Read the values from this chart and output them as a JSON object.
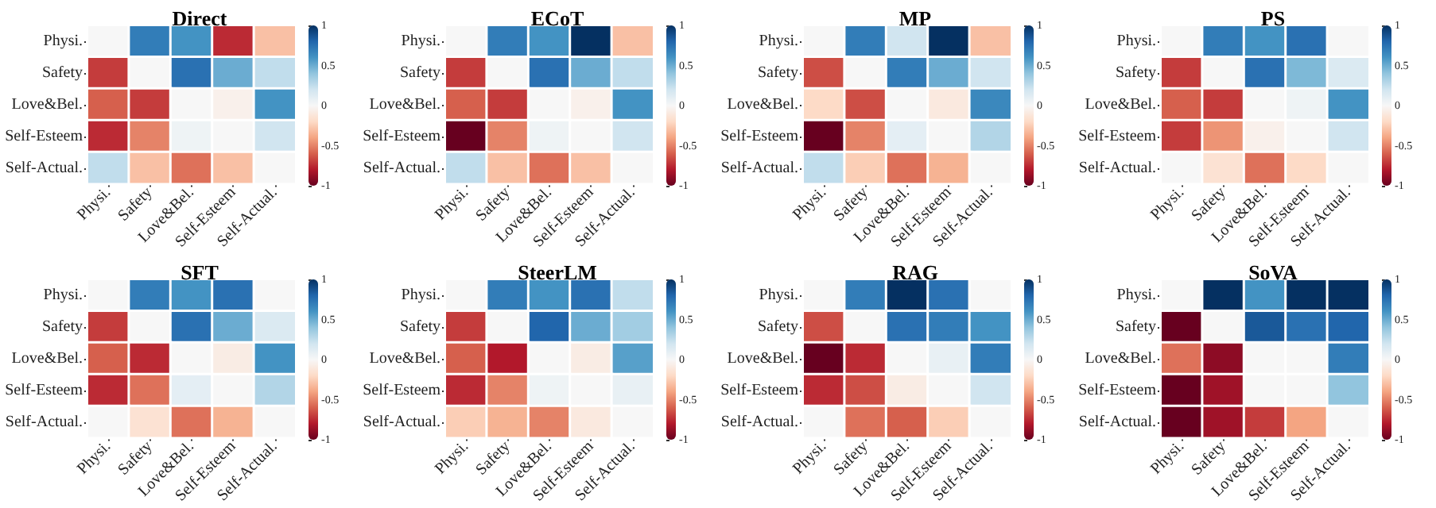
{
  "chart_data": [
    {
      "type": "heatmap",
      "title": "Direct",
      "categories": [
        "Physi.",
        "Safety",
        "Love&Bel.",
        "Self-Esteem",
        "Self-Actual."
      ],
      "y_categories": [
        "Physi.",
        "Safety",
        "Love&Bel.",
        "Self-Esteem",
        "Self-Actual."
      ],
      "clim": [
        -1,
        1
      ],
      "cticks": [
        -1,
        -0.5,
        0,
        0.5,
        1
      ],
      "cells": [
        [
          0,
          0.7,
          0.6,
          -0.75,
          -0.3
        ],
        [
          -0.7,
          0,
          0.75,
          0.5,
          0.25
        ],
        [
          -0.6,
          -0.7,
          0,
          -0.05,
          0.6
        ],
        [
          -0.75,
          -0.5,
          0.05,
          0,
          0.2
        ],
        [
          0.25,
          -0.3,
          -0.55,
          -0.3,
          0
        ]
      ]
    },
    {
      "type": "heatmap",
      "title": "ECoT",
      "categories": [
        "Physi.",
        "Safety",
        "Love&Bel.",
        "Self-Esteem",
        "Self-Actual."
      ],
      "y_categories": [
        "Physi.",
        "Safety",
        "Love&Bel.",
        "Self-Esteem",
        "Self-Actual."
      ],
      "clim": [
        -1,
        1
      ],
      "cticks": [
        -1,
        -0.5,
        0,
        0.5,
        1
      ],
      "cells": [
        [
          0,
          0.7,
          0.6,
          1,
          -0.3
        ],
        [
          -0.7,
          0,
          0.75,
          0.5,
          0.25
        ],
        [
          -0.6,
          -0.7,
          0,
          -0.05,
          0.6
        ],
        [
          -1,
          -0.5,
          0.05,
          0,
          0.2
        ],
        [
          0.25,
          -0.3,
          -0.55,
          -0.3,
          0
        ]
      ]
    },
    {
      "type": "heatmap",
      "title": "MP",
      "categories": [
        "Physi.",
        "Safety",
        "Love&Bel.",
        "Self-Esteem",
        "Self-Actual."
      ],
      "y_categories": [
        "Physi.",
        "Safety",
        "Love&Bel.",
        "Self-Esteem",
        "Self-Actual."
      ],
      "clim": [
        -1,
        1
      ],
      "cticks": [
        -1,
        -0.5,
        0,
        0.5,
        1
      ],
      "cells": [
        [
          0,
          0.7,
          0.2,
          1,
          -0.3
        ],
        [
          -0.65,
          0,
          0.7,
          0.5,
          0.2
        ],
        [
          -0.2,
          -0.65,
          0,
          -0.1,
          0.65
        ],
        [
          -1,
          -0.5,
          0.1,
          0,
          0.3
        ],
        [
          0.25,
          -0.25,
          -0.55,
          -0.35,
          0
        ]
      ]
    },
    {
      "type": "heatmap",
      "title": "PS",
      "categories": [
        "Physi.",
        "Safety",
        "Love&Bel.",
        "Self-Esteem",
        "Self-Actual."
      ],
      "y_categories": [
        "Physi.",
        "Safety",
        "Love&Bel.",
        "Self-Esteem",
        "Self-Actual."
      ],
      "clim": [
        -1,
        1
      ],
      "cticks": [
        -1,
        -0.5,
        0,
        0.5,
        1
      ],
      "cells": [
        [
          0,
          0.7,
          0.6,
          0.75,
          0
        ],
        [
          -0.7,
          0,
          0.75,
          0.45,
          0.15
        ],
        [
          -0.6,
          -0.7,
          0,
          0.05,
          0.6
        ],
        [
          -0.7,
          -0.45,
          -0.05,
          0,
          0.2
        ],
        [
          0,
          -0.15,
          -0.55,
          -0.2,
          0
        ]
      ]
    },
    {
      "type": "heatmap",
      "title": "SFT",
      "categories": [
        "Physi.",
        "Safety",
        "Love&Bel.",
        "Self-Esteem",
        "Self-Actual."
      ],
      "y_categories": [
        "Physi.",
        "Safety",
        "Love&Bel.",
        "Self-Esteem",
        "Self-Actual."
      ],
      "clim": [
        -1,
        1
      ],
      "cticks": [
        -1,
        -0.5,
        0,
        0.5,
        1
      ],
      "cells": [
        [
          0,
          0.7,
          0.6,
          0.75,
          0
        ],
        [
          -0.7,
          0,
          0.75,
          0.5,
          0.15
        ],
        [
          -0.6,
          -0.75,
          0,
          -0.08,
          0.6
        ],
        [
          -0.75,
          -0.55,
          0.1,
          0,
          0.3
        ],
        [
          0,
          -0.15,
          -0.55,
          -0.35,
          0
        ]
      ]
    },
    {
      "type": "heatmap",
      "title": "SteerLM",
      "categories": [
        "Physi.",
        "Safety",
        "Love&Bel.",
        "Self-Esteem",
        "Self-Actual."
      ],
      "y_categories": [
        "Physi.",
        "Safety",
        "Love&Bel.",
        "Self-Esteem",
        "Self-Actual."
      ],
      "clim": [
        -1,
        1
      ],
      "cticks": [
        -1,
        -0.5,
        0,
        0.5,
        1
      ],
      "cells": [
        [
          0,
          0.7,
          0.6,
          0.75,
          0.25
        ],
        [
          -0.7,
          0,
          0.8,
          0.5,
          0.35
        ],
        [
          -0.6,
          -0.8,
          0,
          -0.08,
          0.55
        ],
        [
          -0.75,
          -0.5,
          0.05,
          0,
          0.08
        ],
        [
          -0.25,
          -0.35,
          -0.5,
          -0.1,
          0
        ]
      ]
    },
    {
      "type": "heatmap",
      "title": "RAG",
      "categories": [
        "Physi.",
        "Safety",
        "Love&Bel.",
        "Self-Esteem",
        "Self-Actual."
      ],
      "y_categories": [
        "Physi.",
        "Safety",
        "Love&Bel.",
        "Self-Esteem",
        "Self-Actual."
      ],
      "clim": [
        -1,
        1
      ],
      "cticks": [
        -1,
        -0.5,
        0,
        0.5,
        1
      ],
      "cells": [
        [
          0,
          0.7,
          1,
          0.75,
          0
        ],
        [
          -0.65,
          0,
          0.75,
          0.7,
          0.6
        ],
        [
          -1,
          -0.75,
          0,
          0.08,
          0.7
        ],
        [
          -0.75,
          -0.65,
          -0.08,
          0,
          0.2
        ],
        [
          0,
          -0.55,
          -0.6,
          -0.25,
          0
        ]
      ]
    },
    {
      "type": "heatmap",
      "title": "SoVA",
      "categories": [
        "Physi.",
        "Safety",
        "Love&Bel.",
        "Self-Esteem",
        "Self-Actual."
      ],
      "y_categories": [
        "Physi.",
        "Safety",
        "Love&Bel.",
        "Self-Esteem",
        "Self-Actual."
      ],
      "clim": [
        -1,
        1
      ],
      "cticks": [
        -1,
        -0.5,
        0,
        0.5,
        1
      ],
      "cells": [
        [
          0,
          1,
          0.6,
          1,
          1
        ],
        [
          -1,
          0,
          0.85,
          0.75,
          0.8
        ],
        [
          -0.55,
          -0.9,
          0,
          0,
          0.7
        ],
        [
          -1,
          -0.85,
          0,
          0,
          0.4
        ],
        [
          -1,
          -0.85,
          -0.7,
          -0.4,
          0
        ]
      ]
    }
  ]
}
